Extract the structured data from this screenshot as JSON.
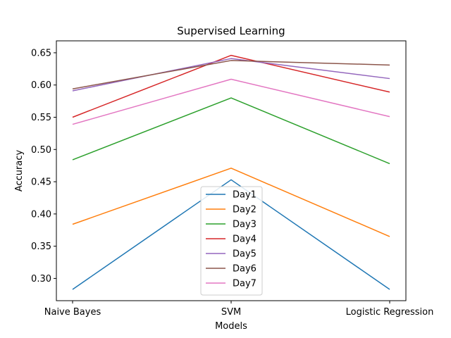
{
  "chart_data": {
    "type": "line",
    "title": "Supervised Learning",
    "xlabel": "Models",
    "ylabel": "Accuracy",
    "categories": [
      "Naive Bayes",
      "SVM",
      "Logistic Regression"
    ],
    "ylim": [
      0.2655,
      0.6685
    ],
    "yticks": [
      0.3,
      0.35,
      0.4,
      0.45,
      0.5,
      0.55,
      0.6,
      0.65
    ],
    "ytick_labels": [
      "0.30",
      "0.35",
      "0.40",
      "0.45",
      "0.50",
      "0.55",
      "0.60",
      "0.65"
    ],
    "grid": false,
    "legend": "lower-center",
    "series": [
      {
        "name": "Day1",
        "color": "#1f77b4",
        "values": [
          0.283,
          0.453,
          0.283
        ]
      },
      {
        "name": "Day2",
        "color": "#ff7f0e",
        "values": [
          0.384,
          0.471,
          0.365
        ]
      },
      {
        "name": "Day3",
        "color": "#2ca02c",
        "values": [
          0.484,
          0.58,
          0.478
        ]
      },
      {
        "name": "Day4",
        "color": "#d62728",
        "values": [
          0.55,
          0.646,
          0.589
        ]
      },
      {
        "name": "Day5",
        "color": "#9467bd",
        "values": [
          0.591,
          0.641,
          0.61
        ]
      },
      {
        "name": "Day6",
        "color": "#8c564b",
        "values": [
          0.594,
          0.638,
          0.631
        ]
      },
      {
        "name": "Day7",
        "color": "#e377c2",
        "values": [
          0.539,
          0.609,
          0.551
        ]
      }
    ]
  }
}
